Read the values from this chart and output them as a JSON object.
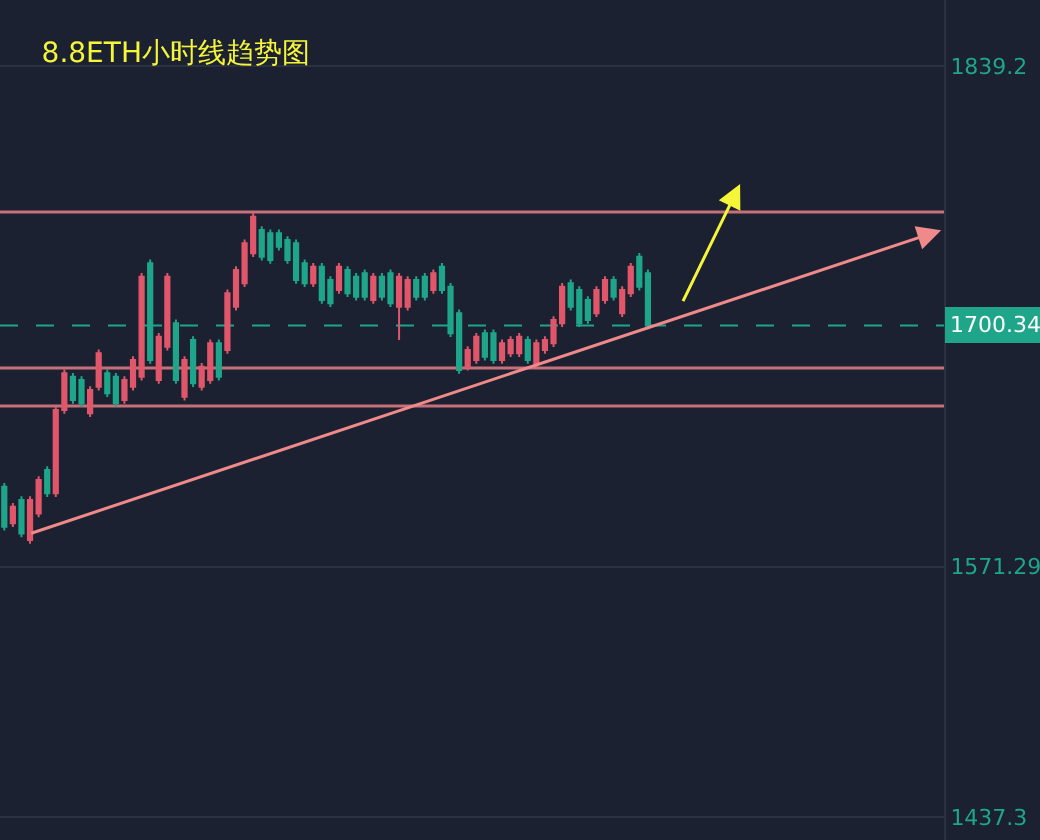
{
  "chart_data": {
    "type": "candlestick",
    "title": "8.8ETH小时线趋势图",
    "categories": [
      null,
      null,
      null,
      null,
      null,
      null,
      null,
      null,
      null,
      null,
      null,
      null,
      null,
      null,
      null,
      null,
      null,
      null,
      null,
      null,
      null,
      null,
      null,
      null,
      null,
      null,
      null,
      null,
      null,
      null,
      null,
      null,
      null,
      null,
      null,
      null,
      null,
      null,
      null,
      null,
      null,
      null,
      null,
      null,
      null,
      null,
      null,
      null,
      null,
      null,
      null,
      null,
      null,
      null,
      null,
      null,
      null,
      null,
      null,
      null,
      null,
      null,
      null,
      null,
      null,
      null,
      null,
      null,
      null,
      null,
      null,
      null,
      null,
      null,
      null,
      null,
      null,
      null,
      null,
      null,
      null,
      null,
      null,
      null,
      null,
      null,
      null,
      null,
      null,
      null,
      null,
      null,
      null,
      null,
      null,
      null,
      null,
      null,
      null,
      null,
      null,
      null,
      null,
      null,
      null,
      null,
      null,
      null,
      null,
      null
    ],
    "ohlc": [
      [
        1614.1,
        1616.1,
        1590.7,
        1592.7
      ],
      [
        1594.5,
        1605.4,
        1592.5,
        1603.4
      ],
      [
        1607.0,
        1609.0,
        1587.1,
        1589.1
      ],
      [
        1585.6,
        1609.0,
        1583.6,
        1607.0
      ],
      [
        1599.8,
        1619.7,
        1597.8,
        1617.7
      ],
      [
        1623.0,
        1625.0,
        1608.6,
        1610.6
      ],
      [
        1610.6,
        1657.1,
        1608.6,
        1655.1
      ],
      [
        1655.1,
        1676.8,
        1653.1,
        1674.8
      ],
      [
        1673.0,
        1675.0,
        1658.5,
        1660.5
      ],
      [
        1671.2,
        1673.2,
        1656.7,
        1658.7
      ],
      [
        1653.4,
        1667.8,
        1651.4,
        1665.8
      ],
      [
        1667.6,
        1687.5,
        1665.6,
        1685.5
      ],
      [
        1674.8,
        1676.8,
        1662.1,
        1664.1
      ],
      [
        1673.0,
        1675.0,
        1656.7,
        1658.7
      ],
      [
        1660.5,
        1673.2,
        1658.5,
        1671.2
      ],
      [
        1667.6,
        1683.9,
        1665.6,
        1681.9
      ],
      [
        1673.0,
        1728.5,
        1671.0,
        1726.5
      ],
      [
        1733.6,
        1735.6,
        1679.9,
        1681.9
      ],
      [
        1671.2,
        1696.4,
        1669.2,
        1694.4
      ],
      [
        1689.0,
        1728.5,
        1687.0,
        1726.5
      ],
      [
        1701.5,
        1703.5,
        1669.2,
        1671.2
      ],
      [
        1662.3,
        1683.9,
        1660.3,
        1681.9
      ],
      [
        1692.6,
        1694.6,
        1667.4,
        1669.4
      ],
      [
        1667.6,
        1680.3,
        1665.6,
        1678.3
      ],
      [
        1671.2,
        1692.8,
        1669.2,
        1690.8
      ],
      [
        1690.8,
        1692.8,
        1671.0,
        1673.0
      ],
      [
        1687.2,
        1719.6,
        1685.2,
        1717.6
      ],
      [
        1710.4,
        1732.0,
        1708.4,
        1730.0
      ],
      [
        1722.9,
        1746.3,
        1720.9,
        1744.3
      ],
      [
        1739.0,
        1760.6,
        1737.0,
        1758.6
      ],
      [
        1751.4,
        1753.4,
        1735.2,
        1737.2
      ],
      [
        1749.7,
        1751.7,
        1733.4,
        1735.4
      ],
      [
        1749.7,
        1751.7,
        1740.5,
        1742.5
      ],
      [
        1746.1,
        1748.1,
        1733.4,
        1735.4
      ],
      [
        1744.3,
        1746.3,
        1722.7,
        1724.7
      ],
      [
        1733.6,
        1735.6,
        1720.9,
        1722.9
      ],
      [
        1722.9,
        1733.8,
        1720.9,
        1731.8
      ],
      [
        1731.8,
        1733.8,
        1712.0,
        1714.0
      ],
      [
        1724.7,
        1726.7,
        1710.2,
        1712.2
      ],
      [
        1719.3,
        1733.8,
        1717.3,
        1731.8
      ],
      [
        1730.0,
        1732.0,
        1715.6,
        1717.6
      ],
      [
        1726.5,
        1728.5,
        1713.8,
        1715.8
      ],
      [
        1728.3,
        1730.3,
        1713.8,
        1715.8
      ],
      [
        1714.0,
        1728.5,
        1712.0,
        1726.5
      ],
      [
        1726.5,
        1728.5,
        1713.8,
        1715.8
      ],
      [
        1728.3,
        1730.3,
        1710.2,
        1712.2
      ],
      [
        1710.4,
        1728.5,
        1692.6,
        1726.5
      ],
      [
        1710.4,
        1726.7,
        1708.4,
        1724.7
      ],
      [
        1724.7,
        1726.7,
        1713.8,
        1715.8
      ],
      [
        1726.5,
        1728.5,
        1713.8,
        1715.8
      ],
      [
        1719.3,
        1730.3,
        1717.3,
        1728.3
      ],
      [
        1731.8,
        1733.8,
        1717.3,
        1719.3
      ],
      [
        1721.1,
        1723.1,
        1694.2,
        1696.2
      ],
      [
        1706.9,
        1708.9,
        1674.5,
        1676.5
      ],
      [
        1678.3,
        1689.2,
        1676.3,
        1687.2
      ],
      [
        1681.9,
        1696.4,
        1679.9,
        1694.4
      ],
      [
        1696.2,
        1698.2,
        1681.7,
        1683.7
      ],
      [
        1696.2,
        1698.2,
        1679.9,
        1681.9
      ],
      [
        1681.9,
        1692.8,
        1679.9,
        1690.8
      ],
      [
        1685.5,
        1694.6,
        1683.5,
        1692.6
      ],
      [
        1685.5,
        1696.4,
        1683.5,
        1694.4
      ],
      [
        1692.6,
        1694.6,
        1679.9,
        1681.9
      ],
      [
        1680.1,
        1692.8,
        1678.1,
        1690.8
      ],
      [
        1687.2,
        1694.6,
        1685.2,
        1692.6
      ],
      [
        1690.8,
        1705.3,
        1688.8,
        1703.3
      ],
      [
        1701.5,
        1723.1,
        1699.5,
        1721.1
      ],
      [
        1722.9,
        1724.9,
        1708.4,
        1710.4
      ],
      [
        1719.3,
        1721.3,
        1699.5,
        1701.5
      ],
      [
        1714.0,
        1716.0,
        1701.3,
        1703.3
      ],
      [
        1706.9,
        1721.3,
        1704.9,
        1719.3
      ],
      [
        1714.0,
        1726.7,
        1712.0,
        1724.7
      ],
      [
        1724.7,
        1726.7,
        1713.8,
        1715.8
      ],
      [
        1706.9,
        1721.3,
        1704.9,
        1719.3
      ],
      [
        1717.6,
        1733.8,
        1715.6,
        1731.8
      ],
      [
        1737.2,
        1739.2,
        1719.1,
        1721.1
      ],
      [
        1728.3,
        1730.3,
        1698.3,
        1700.34
      ],
      null,
      null,
      null,
      null,
      null,
      null,
      null,
      null,
      null,
      null,
      null,
      null,
      null,
      null,
      null,
      null,
      null,
      null,
      null,
      null,
      null,
      null,
      null,
      null,
      null,
      null,
      null,
      null,
      null,
      null,
      null,
      null,
      null,
      null
    ],
    "colors": [
      "#1ea58a",
      "#e0566a",
      "#1ea58a",
      "#e0566a",
      "#e0566a",
      "#1ea58a",
      "#e0566a",
      "#e0566a",
      "#1ea58a",
      "#1ea58a",
      "#e0566a",
      "#e0566a",
      "#1ea58a",
      "#1ea58a",
      "#e0566a",
      "#e0566a",
      "#e0566a",
      "#1ea58a",
      "#e0566a",
      "#e0566a",
      "#1ea58a",
      "#e0566a",
      "#1ea58a",
      "#e0566a",
      "#e0566a",
      "#1ea58a",
      "#e0566a",
      "#e0566a",
      "#e0566a",
      "#e0566a",
      "#1ea58a",
      "#1ea58a",
      "#1ea58a",
      "#1ea58a",
      "#1ea58a",
      "#1ea58a",
      "#e0566a",
      "#1ea58a",
      "#1ea58a",
      "#e0566a",
      "#1ea58a",
      "#1ea58a",
      "#1ea58a",
      "#e0566a",
      "#1ea58a",
      "#1ea58a",
      "#e0566a",
      "#e0566a",
      "#1ea58a",
      "#1ea58a",
      "#e0566a",
      "#1ea58a",
      "#1ea58a",
      "#1ea58a",
      "#e0566a",
      "#e0566a",
      "#1ea58a",
      "#1ea58a",
      "#e0566a",
      "#e0566a",
      "#e0566a",
      "#1ea58a",
      "#e0566a",
      "#e0566a",
      "#e0566a",
      "#e0566a",
      "#1ea58a",
      "#1ea58a",
      "#1ea58a",
      "#e0566a",
      "#e0566a",
      "#1ea58a",
      "#e0566a",
      "#e0566a",
      "#1ea58a",
      "#1ea58a",
      null,
      null,
      null,
      null,
      null,
      null,
      null,
      null,
      null,
      null,
      null,
      null,
      null,
      null,
      null,
      null,
      null,
      null,
      null,
      null,
      null,
      null,
      null,
      null,
      null,
      null,
      null,
      null,
      null,
      null,
      null,
      null,
      null,
      null
    ],
    "ylim": [
      1425.1,
      1874.5
    ],
    "yticks": [
      1839.2,
      1571.29,
      1437.3
    ],
    "ref_lines": [
      {
        "axis": "y",
        "value": 1761.1,
        "color": "#c8707a",
        "line_style": "solid"
      },
      {
        "axis": "y",
        "value": 1677.6,
        "color": "#c8707a",
        "line_style": "solid"
      },
      {
        "axis": "y",
        "value": 1657.3,
        "color": "#c8707a",
        "line_style": "solid"
      },
      {
        "axis": "y",
        "value": 1700.34,
        "label": "1700.34",
        "color": "#1ea58a",
        "line_style": "dashed"
      }
    ],
    "grid": "y",
    "tick_labels": "y"
  }
}
